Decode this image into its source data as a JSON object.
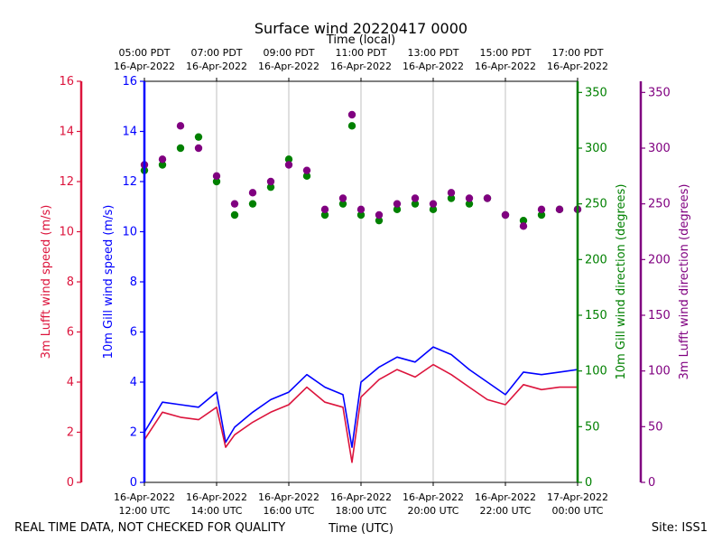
{
  "chart_data": {
    "type": "line+scatter",
    "title": "Surface wind 20220417 0000",
    "top_axis_label": "Time (local)",
    "xlabel": "Time (UTC)",
    "footer_left": "REAL TIME DATA, NOT CHECKED FOR QUALITY",
    "footer_right": "Site: ISS1",
    "x_range_hours_utc": [
      12,
      24
    ],
    "bottom_ticks": [
      {
        "line1": "16-Apr-2022",
        "line2": "12:00 UTC"
      },
      {
        "line1": "16-Apr-2022",
        "line2": "14:00 UTC"
      },
      {
        "line1": "16-Apr-2022",
        "line2": "16:00 UTC"
      },
      {
        "line1": "16-Apr-2022",
        "line2": "18:00 UTC"
      },
      {
        "line1": "16-Apr-2022",
        "line2": "20:00 UTC"
      },
      {
        "line1": "16-Apr-2022",
        "line2": "22:00 UTC"
      },
      {
        "line1": "17-Apr-2022",
        "line2": "00:00 UTC"
      }
    ],
    "top_ticks": [
      {
        "line1": "05:00 PDT",
        "line2": "16-Apr-2022"
      },
      {
        "line1": "07:00 PDT",
        "line2": "16-Apr-2022"
      },
      {
        "line1": "09:00 PDT",
        "line2": "16-Apr-2022"
      },
      {
        "line1": "11:00 PDT",
        "line2": "16-Apr-2022"
      },
      {
        "line1": "13:00 PDT",
        "line2": "16-Apr-2022"
      },
      {
        "line1": "15:00 PDT",
        "line2": "16-Apr-2022"
      },
      {
        "line1": "17:00 PDT",
        "line2": "16-Apr-2022"
      }
    ],
    "axes": {
      "lufft_speed": {
        "label": "3m Lufft wind speed (m/s)",
        "range": [
          0,
          16
        ],
        "ticks": [
          "0",
          "2",
          "4",
          "6",
          "8",
          "10",
          "12",
          "14",
          "16"
        ],
        "color": "#dc143c"
      },
      "gill_speed": {
        "label": "10m Gill wind speed (m/s)",
        "range": [
          0,
          16
        ],
        "ticks": [
          "0",
          "2",
          "4",
          "6",
          "8",
          "10",
          "12",
          "14",
          "16"
        ],
        "color": "#0000ff"
      },
      "gill_dir": {
        "label": "10m Gill wind direction (degrees)",
        "range": [
          0,
          360
        ],
        "ticks": [
          "0",
          "50",
          "100",
          "150",
          "200",
          "250",
          "300",
          "350"
        ],
        "color": "#008000"
      },
      "lufft_dir": {
        "label": "3m Lufft wind direction (degrees)",
        "range": [
          0,
          360
        ],
        "ticks": [
          "0",
          "50",
          "100",
          "150",
          "200",
          "250",
          "300",
          "350"
        ],
        "color": "#800080"
      }
    },
    "series": [
      {
        "name": "10m Gill wind speed",
        "kind": "line",
        "axis": "gill_speed",
        "color": "#0000ff",
        "x": [
          12.0,
          12.5,
          13.0,
          13.5,
          14.0,
          14.25,
          14.5,
          15.0,
          15.5,
          16.0,
          16.5,
          17.0,
          17.5,
          17.75,
          18.0,
          18.5,
          19.0,
          19.5,
          20.0,
          20.5,
          21.0,
          21.5,
          22.0,
          22.5,
          23.0,
          23.5,
          24.0
        ],
        "y": [
          2.0,
          3.2,
          3.1,
          3.0,
          3.6,
          1.6,
          2.2,
          2.8,
          3.3,
          3.6,
          4.3,
          3.8,
          3.5,
          1.4,
          4.0,
          4.6,
          5.0,
          4.8,
          5.4,
          5.1,
          4.5,
          4.0,
          3.5,
          4.4,
          4.3,
          4.4,
          4.5
        ]
      },
      {
        "name": "3m Lufft wind speed",
        "kind": "line",
        "axis": "lufft_speed",
        "color": "#dc143c",
        "x": [
          12.0,
          12.5,
          13.0,
          13.5,
          14.0,
          14.25,
          14.5,
          15.0,
          15.5,
          16.0,
          16.5,
          17.0,
          17.5,
          17.75,
          18.0,
          18.5,
          19.0,
          19.5,
          20.0,
          20.5,
          21.0,
          21.5,
          22.0,
          22.5,
          23.0,
          23.5,
          24.0
        ],
        "y": [
          1.7,
          2.8,
          2.6,
          2.5,
          3.0,
          1.4,
          1.9,
          2.4,
          2.8,
          3.1,
          3.8,
          3.2,
          3.0,
          0.8,
          3.4,
          4.1,
          4.5,
          4.2,
          4.7,
          4.3,
          3.8,
          3.3,
          3.1,
          3.9,
          3.7,
          3.8,
          3.8
        ]
      },
      {
        "name": "10m Gill wind direction",
        "kind": "scatter",
        "axis": "gill_dir",
        "color": "#008000",
        "x": [
          12.0,
          12.5,
          13.0,
          13.5,
          14.0,
          14.5,
          15.0,
          15.5,
          16.0,
          16.5,
          17.0,
          17.5,
          17.75,
          18.0,
          18.5,
          19.0,
          19.5,
          20.0,
          20.5,
          21.0,
          21.5,
          22.0,
          22.5,
          23.0,
          23.5,
          24.0
        ],
        "y": [
          280,
          285,
          300,
          310,
          270,
          240,
          250,
          265,
          290,
          275,
          240,
          250,
          320,
          240,
          235,
          245,
          250,
          245,
          255,
          250,
          255,
          240,
          235,
          240,
          245,
          245
        ]
      },
      {
        "name": "3m Lufft wind direction",
        "kind": "scatter",
        "axis": "lufft_dir",
        "color": "#800080",
        "x": [
          12.0,
          12.5,
          13.0,
          13.5,
          14.0,
          14.5,
          15.0,
          15.5,
          16.0,
          16.5,
          17.0,
          17.5,
          17.75,
          18.0,
          18.5,
          19.0,
          19.5,
          20.0,
          20.5,
          21.0,
          21.5,
          22.0,
          22.5,
          23.0,
          23.5,
          24.0
        ],
        "y": [
          285,
          290,
          320,
          300,
          275,
          250,
          260,
          270,
          285,
          280,
          245,
          255,
          330,
          245,
          240,
          250,
          255,
          250,
          260,
          255,
          255,
          240,
          230,
          245,
          245,
          245
        ]
      }
    ]
  }
}
